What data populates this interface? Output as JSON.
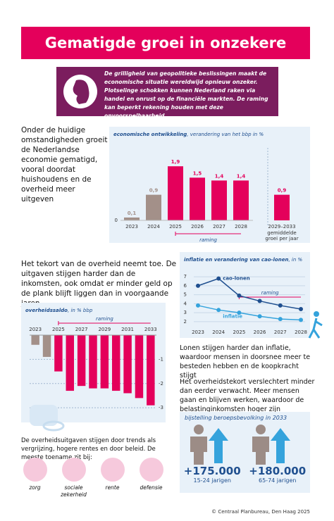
{
  "header": {
    "title": "Gematigde groei in onzekere wereld",
    "intro": "De grilligheid van geopolitieke beslissingen maakt de economische situatie wereldwijd opnieuw onzeker. Plotselinge schokken kunnen Nederland raken via handel en onrust op de financiële markten. De raming kan beperkt rekening houden met deze onvoorspelbaarheid"
  },
  "texts": [
    "Onder de huidige omstandigheden groeit de Nederlandse economie gematigd, vooral doordat huishoudens en de overheid meer uitgeven",
    "Het tekort van de overheid neemt toe. De uitgaven stijgen harder dan de inkomsten, ook omdat er minder geld op de plank blijft liggen dan in voorgaande jaren",
    "Lonen stijgen harder dan inflatie, waardoor mensen in doorsnee meer te besteden hebben en de koopkracht stijgt",
    "Het overheidstekort verslechtert minder dan eerder verwacht. Meer mensen gaan en blijven werken, waardoor de belastinginkomsten hoger zijn"
  ],
  "chart_data": [
    {
      "type": "bar",
      "title": "economische ontwikkeling",
      "subtitle": ", verandering van het bbp in %",
      "categories": [
        "2023",
        "2024",
        "2025",
        "2026",
        "2027",
        "2028",
        "2029–2033"
      ],
      "values": [
        0.1,
        0.9,
        1.9,
        1.5,
        1.4,
        1.4,
        0.9
      ],
      "value_labels": [
        "0,1",
        "0,9",
        "1,9",
        "1,5",
        "1,4",
        "1,4",
        "0,9"
      ],
      "colors": [
        "#a39089",
        "#a39089",
        "#e4005b",
        "#e4005b",
        "#e4005b",
        "#e4005b",
        "#e4005b"
      ],
      "ylim": [
        0,
        2.3
      ],
      "yticks": [
        0
      ],
      "annotations": [
        "raming",
        "gemiddelde",
        "groei per jaar"
      ]
    },
    {
      "type": "line",
      "title": "inflatie en verandering van cao-lonen",
      "subtitle": ", in %",
      "categories": [
        "2023",
        "2024",
        "2025",
        "2026",
        "2027",
        "2028"
      ],
      "series": [
        {
          "name": "cao-lonen",
          "color": "#1f4f8f",
          "values": [
            6.0,
            6.8,
            4.9,
            4.3,
            3.8,
            3.4
          ]
        },
        {
          "name": "inflatie",
          "color": "#35a3dc",
          "values": [
            3.8,
            3.3,
            3.0,
            2.6,
            2.3,
            2.2
          ]
        }
      ],
      "ylim": [
        1.6,
        7.4
      ],
      "yticks": [
        2,
        3,
        4,
        5,
        6,
        7
      ],
      "annotations": [
        "raming"
      ]
    },
    {
      "type": "bar",
      "title": "overheidssaldo",
      "subtitle": ", in % bbp",
      "categories": [
        "2023",
        null,
        "2025",
        null,
        "2027",
        null,
        "2029",
        null,
        "2031",
        null,
        "2033"
      ],
      "values": [
        -0.4,
        -0.9,
        -1.5,
        -2.3,
        -2.1,
        -2.2,
        -2.2,
        -2.3,
        -2.4,
        -2.6,
        -2.9
      ],
      "colors": [
        "#a39089",
        "#a39089",
        "#e4005b",
        "#e4005b",
        "#e4005b",
        "#e4005b",
        "#e4005b",
        "#e4005b",
        "#e4005b",
        "#e4005b",
        "#e4005b"
      ],
      "ylim": [
        -3.2,
        0
      ],
      "yticks": [
        -1,
        -2,
        -3
      ],
      "annotations": [
        "raming"
      ]
    }
  ],
  "workforce": {
    "title": "bijstelling beroepsbevolking in 2033",
    "groups": [
      {
        "value": "+175.000",
        "label": "15-24 jarigen"
      },
      {
        "value": "+180.000",
        "label": "65-74 jarigen"
      }
    ]
  },
  "spending": {
    "text": "De overheidsuitgaven stijgen door trends als vergrijzing, hogere rentes en door beleid. De meeste toename zit bij:",
    "items": [
      "zorg",
      "sociale zekerheid",
      "rente",
      "defensie"
    ]
  },
  "footer": "© Centraal Planbureau, Den Haag 2025"
}
